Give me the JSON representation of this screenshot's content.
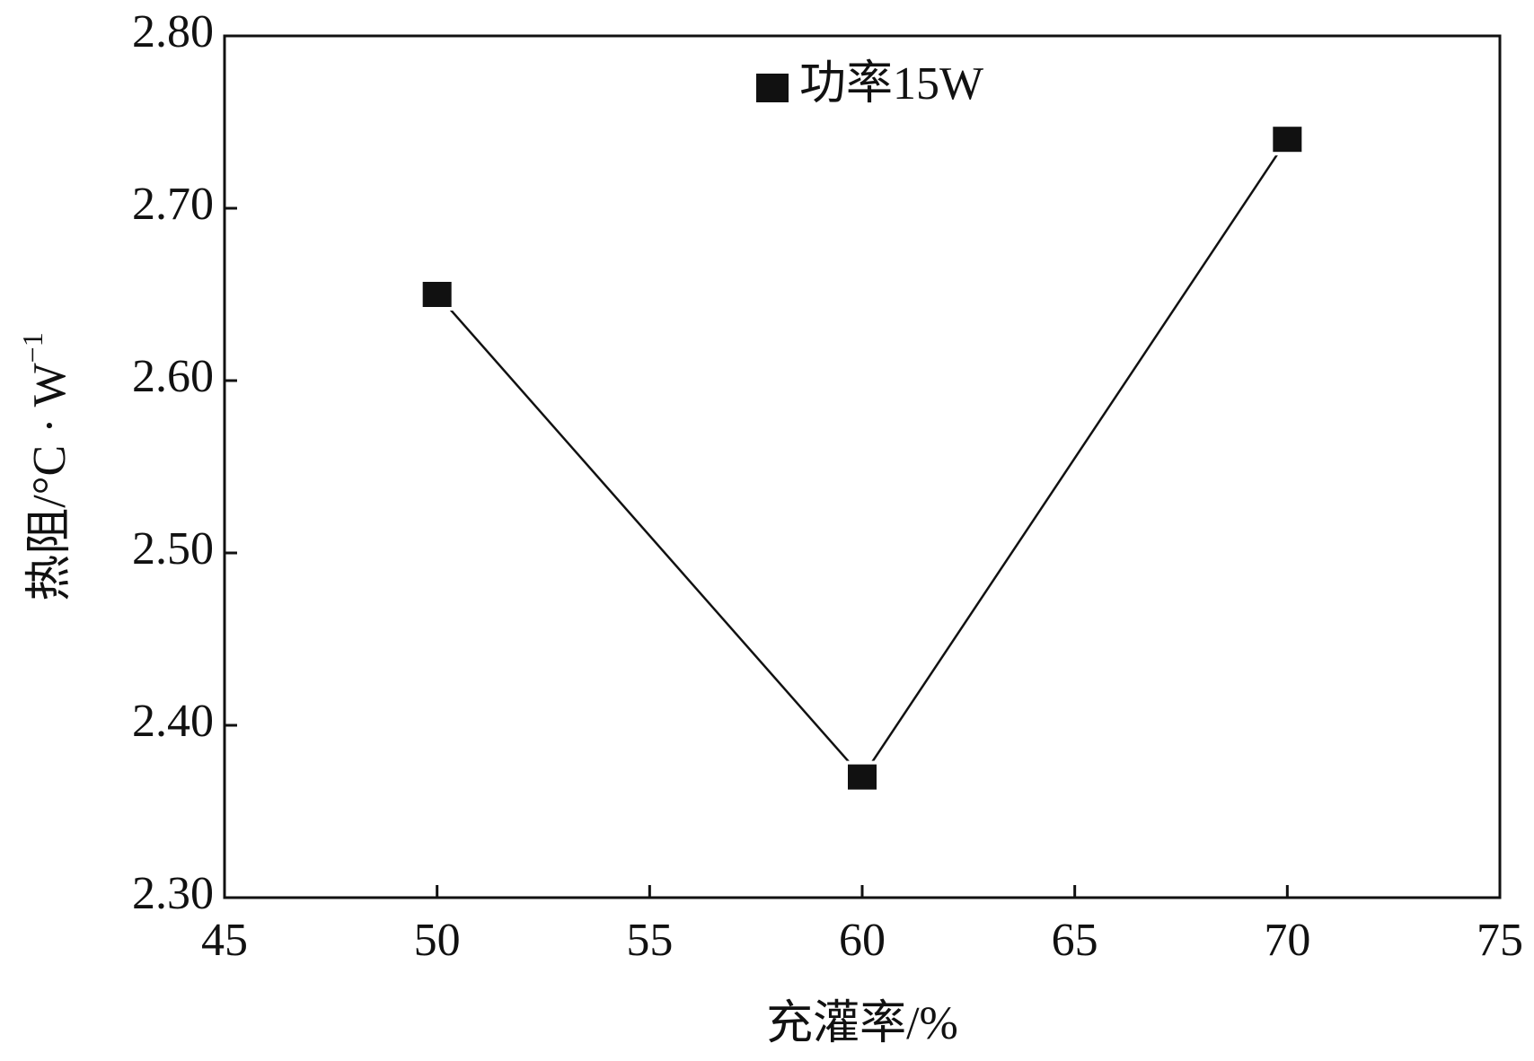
{
  "chart_data": {
    "type": "line",
    "x": [
      50,
      60,
      70
    ],
    "series": [
      {
        "name": "功率15W",
        "color": "#111111",
        "values": [
          2.65,
          2.37,
          2.74
        ]
      }
    ],
    "xlim": [
      45,
      75
    ],
    "xticks": [
      45,
      50,
      55,
      60,
      65,
      70,
      75
    ],
    "ylim": [
      2.3,
      2.8
    ],
    "yticks": [
      {
        "value": 2.3,
        "label": "2.30"
      },
      {
        "value": 2.4,
        "label": "2.40"
      },
      {
        "value": 2.5,
        "label": "2.50"
      },
      {
        "value": 2.6,
        "label": "2.60"
      },
      {
        "value": 2.7,
        "label": "2.70"
      },
      {
        "value": 2.8,
        "label": "2.80"
      }
    ],
    "xlabel": "充灌率/%",
    "ylabel": {
      "text": "热阻/°C · W",
      "superscript": "−1"
    },
    "legend": "upper center",
    "grid": false
  }
}
